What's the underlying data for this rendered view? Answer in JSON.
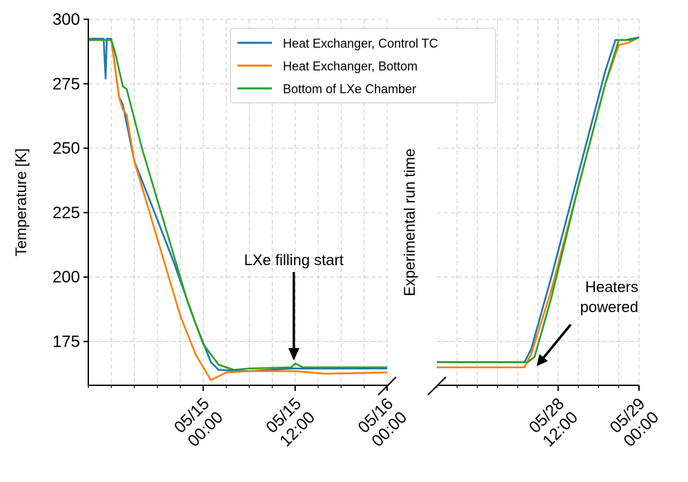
{
  "chart_data": {
    "type": "line",
    "title": "",
    "xlabel": "",
    "ylabel": "Temperature [K]",
    "ylim": [
      158,
      300
    ],
    "yticks": [
      175,
      200,
      225,
      250,
      275,
      300
    ],
    "grid": true,
    "legend_position": "top-center",
    "broken_x_axis": true,
    "panels": [
      {
        "xlim": [
          "05/14 09:00",
          "05/16 00:00"
        ],
        "xticks": [
          {
            "x": "05/15 00:00",
            "label": "05/15\n00:00"
          },
          {
            "x": "05/15 12:00",
            "label": "05/15\n12:00"
          },
          {
            "x": "05/16 00:00",
            "label": "05/16\n00:00"
          }
        ]
      },
      {
        "xlim": [
          "05/27 18:00",
          "05/29 00:00"
        ],
        "xticks": [
          {
            "x": "05/28 12:00",
            "label": "05/28\n12:00"
          },
          {
            "x": "05/29 00:00",
            "label": "05/29\n00:00"
          }
        ]
      }
    ],
    "series": [
      {
        "name": "Heat Exchanger, Control TC",
        "color": "#1f77b4",
        "segments": [
          [
            [
              "05/14 09:00",
              292.5
            ],
            [
              "05/14 11:00",
              292.5
            ],
            [
              "05/14 11:15",
              277
            ],
            [
              "05/14 11:25",
              292.5
            ],
            [
              "05/14 12:00",
              292.5
            ],
            [
              "05/14 13:00",
              270
            ],
            [
              "05/14 13:30",
              267
            ],
            [
              "05/14 15:00",
              245
            ],
            [
              "05/14 17:00",
              230
            ],
            [
              "05/14 20:00",
              207
            ],
            [
              "05/14 23:00",
              182
            ],
            [
              "05/15 01:00",
              167
            ],
            [
              "05/15 02:00",
              164
            ],
            [
              "05/15 06:00",
              163.5
            ],
            [
              "05/15 11:30",
              164.5
            ],
            [
              "05/15 12:00",
              164.5
            ],
            [
              "05/15 18:00",
              164.5
            ],
            [
              "05/16 00:00",
              164.5
            ]
          ],
          [
            [
              "05/27 18:00",
              167
            ],
            [
              "05/28 07:00",
              167
            ],
            [
              "05/28 08:00",
              172
            ],
            [
              "05/28 11:00",
              200
            ],
            [
              "05/28 15:00",
              240
            ],
            [
              "05/28 19:00",
              280
            ],
            [
              "05/28 20:30",
              292
            ],
            [
              "05/28 22:00",
              292
            ],
            [
              "05/29 00:00",
              293
            ]
          ]
        ]
      },
      {
        "name": "Heat Exchanger, Bottom",
        "color": "#ff7f0e",
        "segments": [
          [
            [
              "05/14 09:00",
              292
            ],
            [
              "05/14 12:00",
              292
            ],
            [
              "05/14 13:00",
              270
            ],
            [
              "05/14 13:30",
              265
            ],
            [
              "05/14 14:00",
              263
            ],
            [
              "05/14 15:00",
              245
            ],
            [
              "05/14 17:00",
              225
            ],
            [
              "05/14 19:00",
              205
            ],
            [
              "05/14 21:00",
              185
            ],
            [
              "05/14 23:00",
              170
            ],
            [
              "05/15 01:00",
              160
            ],
            [
              "05/15 03:00",
              163
            ],
            [
              "05/15 06:00",
              163.5
            ],
            [
              "05/15 12:00",
              163.5
            ],
            [
              "05/15 16:00",
              162.5
            ],
            [
              "05/16 00:00",
              163
            ]
          ],
          [
            [
              "05/27 18:00",
              165
            ],
            [
              "05/28 07:00",
              165
            ],
            [
              "05/28 08:00",
              170
            ],
            [
              "05/28 11:00",
              195
            ],
            [
              "05/28 15:00",
              235
            ],
            [
              "05/28 19:00",
              275
            ],
            [
              "05/28 21:00",
              290
            ],
            [
              "05/28 22:30",
              291
            ],
            [
              "05/29 00:00",
              293
            ]
          ]
        ]
      },
      {
        "name": "Bottom of LXe Chamber",
        "color": "#2ca02c",
        "segments": [
          [
            [
              "05/14 09:00",
              292
            ],
            [
              "05/14 11:30",
              292
            ],
            [
              "05/14 12:00",
              292
            ],
            [
              "05/14 12:30",
              287
            ],
            [
              "05/14 13:30",
              274
            ],
            [
              "05/14 14:00",
              273
            ],
            [
              "05/14 16:00",
              250
            ],
            [
              "05/14 18:00",
              230
            ],
            [
              "05/14 20:00",
              210
            ],
            [
              "05/14 22:00",
              190
            ],
            [
              "05/15 00:00",
              174
            ],
            [
              "05/15 02:00",
              166
            ],
            [
              "05/15 04:00",
              164
            ],
            [
              "05/15 06:00",
              164.5
            ],
            [
              "05/15 11:30",
              165
            ],
            [
              "05/15 12:00",
              166.5
            ],
            [
              "05/15 13:00",
              165
            ],
            [
              "05/16 00:00",
              165
            ]
          ],
          [
            [
              "05/27 18:00",
              167
            ],
            [
              "05/28 07:30",
              167
            ],
            [
              "05/28 08:30",
              169
            ],
            [
              "05/28 11:00",
              192
            ],
            [
              "05/28 15:00",
              235
            ],
            [
              "05/28 19:00",
              275
            ],
            [
              "05/28 21:00",
              292
            ],
            [
              "05/28 23:00",
              292
            ],
            [
              "05/29 00:00",
              293
            ]
          ]
        ]
      }
    ],
    "annotations": [
      {
        "text": "LXe filling start",
        "x": "05/15 12:00",
        "y": 166
      },
      {
        "text": "Heaters\npowered",
        "x": "05/28 08:00",
        "y": 166
      },
      {
        "text": "Experimental run time",
        "orientation": "vertical",
        "location": "axis-break"
      }
    ]
  }
}
